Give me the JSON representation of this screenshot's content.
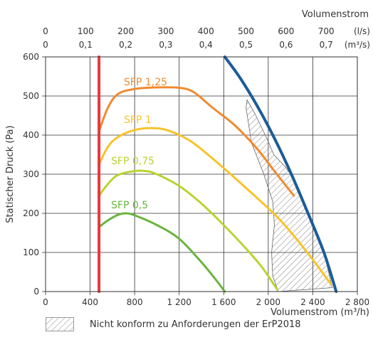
{
  "chart_data": {
    "type": "line",
    "title": "",
    "xlabel": "Volumenstrom (m³/h)",
    "ylabel": "Statischer Druck (Pa)",
    "xlim": [
      0,
      2800
    ],
    "ylim": [
      0,
      600
    ],
    "x_ticks": [
      "0",
      "400",
      "800",
      "1 200",
      "1 600",
      "2 000",
      "2 400",
      "2 800"
    ],
    "y_ticks": [
      "0",
      "100",
      "200",
      "300",
      "400",
      "500",
      "600"
    ],
    "top_axis": {
      "label": "Volumenstrom",
      "ls_ticks": [
        "0",
        "100",
        "200",
        "300",
        "400",
        "500",
        "600",
        "700"
      ],
      "ls_unit": "(l/s)",
      "m3s_ticks": [
        "0",
        "0,1",
        "0,2",
        "0,3",
        "0,4",
        "0,5",
        "0,6",
        "0,7"
      ],
      "m3s_unit": "(m³/s)"
    },
    "grid": true,
    "series": [
      {
        "name": "SFP 1,25",
        "color": "#f08a30",
        "points": [
          [
            480,
            410
          ],
          [
            560,
            470
          ],
          [
            650,
            505
          ],
          [
            800,
            518
          ],
          [
            1000,
            522
          ],
          [
            1200,
            521
          ],
          [
            1330,
            510
          ],
          [
            1500,
            470
          ],
          [
            1700,
            425
          ],
          [
            1900,
            365
          ],
          [
            2050,
            310
          ],
          [
            2230,
            245
          ]
        ]
      },
      {
        "name": "SFP 1",
        "color": "#f7c32a",
        "points": [
          [
            480,
            325
          ],
          [
            560,
            370
          ],
          [
            650,
            395
          ],
          [
            800,
            413
          ],
          [
            950,
            418
          ],
          [
            1100,
            412
          ],
          [
            1300,
            385
          ],
          [
            1500,
            340
          ],
          [
            1800,
            265
          ],
          [
            2100,
            185
          ],
          [
            2350,
            100
          ],
          [
            2560,
            20
          ]
        ]
      },
      {
        "name": "SFP 0,75",
        "color": "#b8d431",
        "points": [
          [
            480,
            245
          ],
          [
            560,
            275
          ],
          [
            650,
            298
          ],
          [
            800,
            308
          ],
          [
            900,
            308
          ],
          [
            1000,
            300
          ],
          [
            1200,
            270
          ],
          [
            1400,
            225
          ],
          [
            1600,
            170
          ],
          [
            1800,
            110
          ],
          [
            1950,
            60
          ],
          [
            2080,
            5
          ]
        ]
      },
      {
        "name": "SFP 0,5",
        "color": "#6ab43e",
        "points": [
          [
            480,
            165
          ],
          [
            560,
            182
          ],
          [
            650,
            196
          ],
          [
            720,
            200
          ],
          [
            800,
            195
          ],
          [
            1000,
            170
          ],
          [
            1200,
            135
          ],
          [
            1400,
            75
          ],
          [
            1530,
            30
          ],
          [
            1610,
            0
          ]
        ]
      },
      {
        "name": "",
        "color": "#e8383d",
        "points": [
          [
            480,
            0
          ],
          [
            480,
            600
          ]
        ]
      },
      {
        "name": "",
        "color": "#1a5c99",
        "points": [
          [
            1610,
            600
          ],
          [
            1750,
            545
          ],
          [
            1900,
            475
          ],
          [
            2050,
            395
          ],
          [
            2200,
            305
          ],
          [
            2350,
            205
          ],
          [
            2500,
            100
          ],
          [
            2610,
            0
          ]
        ]
      }
    ],
    "hatch_region": [
      [
        1810,
        490
      ],
      [
        1880,
        455
      ],
      [
        1990,
        390
      ],
      [
        2050,
        350
      ],
      [
        2150,
        320
      ],
      [
        2200,
        300
      ],
      [
        2350,
        205
      ],
      [
        2500,
        100
      ],
      [
        2575,
        10
      ],
      [
        2090,
        0
      ],
      [
        2040,
        40
      ],
      [
        2030,
        100
      ],
      [
        2055,
        170
      ],
      [
        2040,
        230
      ],
      [
        1960,
        300
      ],
      [
        1850,
        380
      ],
      [
        1800,
        470
      ]
    ]
  },
  "legend": {
    "text": "Nicht konform zu Anforderungen der ErP2018"
  }
}
